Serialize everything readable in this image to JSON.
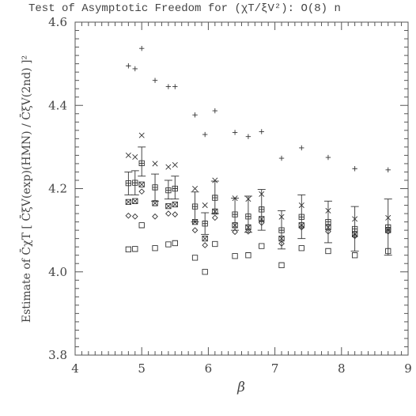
{
  "chart_data": {
    "type": "scatter",
    "title": "Test of Asymptotic Freedom for (χT/ξV²): O(8) n",
    "xlabel": "β",
    "ylabel": "Estimate of C̄χT [ C̄ξV(exp)(HMN) / C̄ξV(2nd) ]²",
    "xlim": [
      4,
      9
    ],
    "ylim": [
      3.8,
      4.6
    ],
    "x_ticks": [
      "4",
      "5",
      "6",
      "7",
      "8",
      "9"
    ],
    "y_ticks": [
      "3.8",
      "4.0",
      "4.2",
      "4.4",
      "4.6"
    ],
    "grid": false,
    "series": [
      {
        "marker": "plus",
        "points": [
          [
            4.8,
            4.495
          ],
          [
            4.9,
            4.488
          ],
          [
            5.0,
            4.537
          ],
          [
            5.2,
            4.46
          ],
          [
            5.4,
            4.445
          ],
          [
            5.5,
            4.445
          ],
          [
            5.8,
            4.377
          ],
          [
            5.95,
            4.33
          ],
          [
            6.1,
            4.387
          ],
          [
            6.4,
            4.335
          ],
          [
            6.6,
            4.325
          ],
          [
            6.8,
            4.337
          ],
          [
            7.1,
            4.273
          ],
          [
            7.4,
            4.298
          ],
          [
            7.8,
            4.275
          ],
          [
            8.2,
            4.248
          ],
          [
            8.7,
            4.245
          ]
        ]
      },
      {
        "marker": "cross",
        "points": [
          [
            4.8,
            4.28
          ],
          [
            4.9,
            4.276
          ],
          [
            5.0,
            4.328
          ],
          [
            5.2,
            4.26
          ],
          [
            5.4,
            4.252
          ],
          [
            5.5,
            4.257
          ],
          [
            5.8,
            4.2
          ],
          [
            5.95,
            4.16
          ],
          [
            6.1,
            4.22
          ],
          [
            6.4,
            4.177
          ],
          [
            6.6,
            4.175
          ],
          [
            6.8,
            4.187
          ],
          [
            7.1,
            4.132
          ],
          [
            7.4,
            4.16
          ],
          [
            7.8,
            4.147
          ],
          [
            8.2,
            4.127
          ],
          [
            8.7,
            4.13
          ]
        ]
      },
      {
        "marker": "boxplus",
        "points": [
          [
            4.8,
            4.213
          ],
          [
            4.9,
            4.214
          ],
          [
            5.0,
            4.261
          ],
          [
            5.2,
            4.203
          ],
          [
            5.4,
            4.196
          ],
          [
            5.5,
            4.2
          ],
          [
            5.8,
            4.157
          ],
          [
            5.95,
            4.116
          ],
          [
            6.1,
            4.178
          ],
          [
            6.4,
            4.138
          ],
          [
            6.6,
            4.133
          ],
          [
            6.8,
            4.15
          ],
          [
            7.1,
            4.1
          ],
          [
            7.4,
            4.132
          ],
          [
            7.8,
            4.12
          ],
          [
            8.2,
            4.103
          ],
          [
            8.7,
            4.107
          ]
        ]
      },
      {
        "marker": "boxx",
        "points": [
          [
            4.8,
            4.168
          ],
          [
            4.9,
            4.17
          ],
          [
            5.0,
            4.21
          ],
          [
            5.2,
            4.165
          ],
          [
            5.4,
            4.158
          ],
          [
            5.5,
            4.162
          ],
          [
            5.8,
            4.12
          ],
          [
            5.95,
            4.08
          ],
          [
            6.1,
            4.145
          ],
          [
            6.4,
            4.112
          ],
          [
            6.6,
            4.107
          ],
          [
            6.8,
            4.127
          ],
          [
            7.1,
            4.08
          ],
          [
            7.4,
            4.112
          ],
          [
            7.8,
            4.107
          ],
          [
            8.2,
            4.09
          ],
          [
            8.7,
            4.1
          ]
        ]
      },
      {
        "marker": "diamond",
        "points": [
          [
            4.8,
            4.135
          ],
          [
            4.9,
            4.133
          ],
          [
            5.0,
            4.193
          ],
          [
            5.2,
            4.133
          ],
          [
            5.4,
            4.14
          ],
          [
            5.5,
            4.138
          ],
          [
            5.8,
            4.1
          ],
          [
            5.95,
            4.064
          ],
          [
            6.1,
            4.13
          ],
          [
            6.4,
            4.096
          ],
          [
            6.6,
            4.097
          ],
          [
            6.8,
            4.118
          ],
          [
            7.1,
            4.068
          ],
          [
            7.4,
            4.107
          ],
          [
            7.8,
            4.097
          ],
          [
            8.2,
            4.086
          ],
          [
            8.7,
            4.097
          ]
        ]
      },
      {
        "marker": "square",
        "points": [
          [
            4.8,
            4.054
          ],
          [
            4.9,
            4.055
          ],
          [
            5.0,
            4.112
          ],
          [
            5.2,
            4.057
          ],
          [
            5.4,
            4.066
          ],
          [
            5.5,
            4.069
          ],
          [
            5.8,
            4.034
          ],
          [
            5.95,
            4.0
          ],
          [
            6.1,
            4.067
          ],
          [
            6.4,
            4.038
          ],
          [
            6.6,
            4.04
          ],
          [
            6.8,
            4.062
          ],
          [
            7.1,
            4.016
          ],
          [
            7.4,
            4.057
          ],
          [
            7.8,
            4.05
          ],
          [
            8.2,
            4.04
          ],
          [
            8.7,
            4.05
          ]
        ]
      }
    ],
    "error_bars": [
      {
        "x": 4.8,
        "low": 4.185,
        "high": 4.24
      },
      {
        "x": 4.9,
        "low": 4.185,
        "high": 4.243
      },
      {
        "x": 5.0,
        "low": 4.23,
        "high": 4.3
      },
      {
        "x": 5.2,
        "low": 4.17,
        "high": 4.235
      },
      {
        "x": 5.4,
        "low": 4.175,
        "high": 4.22
      },
      {
        "x": 5.5,
        "low": 4.175,
        "high": 4.23
      },
      {
        "x": 5.8,
        "low": 4.12,
        "high": 4.192
      },
      {
        "x": 5.95,
        "low": 4.09,
        "high": 4.142
      },
      {
        "x": 6.1,
        "low": 4.14,
        "high": 4.218
      },
      {
        "x": 6.4,
        "low": 4.1,
        "high": 4.177
      },
      {
        "x": 6.6,
        "low": 4.095,
        "high": 4.182
      },
      {
        "x": 6.8,
        "low": 4.1,
        "high": 4.198
      },
      {
        "x": 7.1,
        "low": 4.055,
        "high": 4.147
      },
      {
        "x": 7.4,
        "low": 4.08,
        "high": 4.185
      },
      {
        "x": 7.8,
        "low": 4.07,
        "high": 4.17
      },
      {
        "x": 8.2,
        "low": 4.05,
        "high": 4.157
      },
      {
        "x": 8.7,
        "low": 4.04,
        "high": 4.175
      }
    ]
  }
}
